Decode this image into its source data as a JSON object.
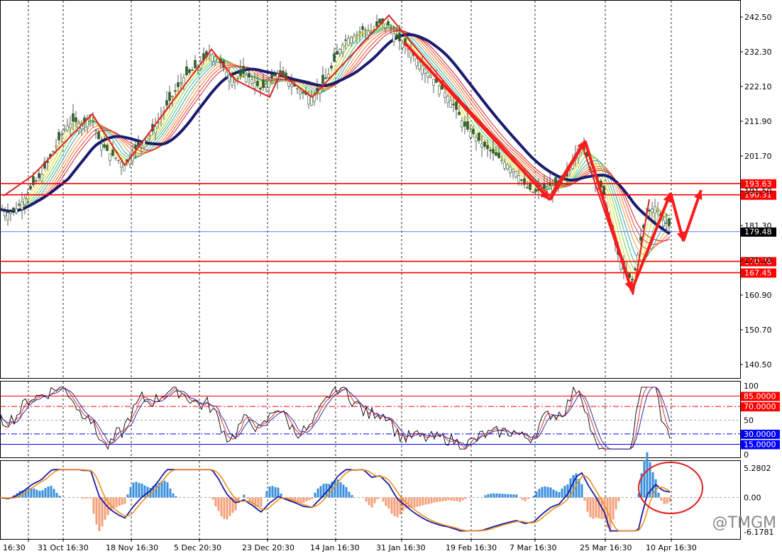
{
  "chart_data": [
    {
      "type": "candlestick",
      "title": "",
      "ylim": [
        135.0,
        248.0
      ],
      "price_ticks": [
        "242.50",
        "232.30",
        "222.10",
        "211.90",
        "201.70",
        "191.50",
        "181.30",
        "171.10",
        "160.90",
        "150.70",
        "140.50"
      ],
      "time_labels": [
        "16:30",
        "31 Oct 16:30",
        "18 Nov 16:30",
        "5 Dec 20:30",
        "23 Dec 20:30",
        "14 Jan 16:30",
        "31 Jan 16:30",
        "19 Feb 16:30",
        "7 Mar 16:30",
        "25 Mar 16:30",
        "10 Apr 16:30"
      ],
      "grid": "vertical dashed",
      "close_path": [
        [
          0,
          186
        ],
        [
          12,
          185
        ],
        [
          22,
          186
        ],
        [
          34,
          189
        ],
        [
          46,
          193
        ],
        [
          58,
          196
        ],
        [
          70,
          201
        ],
        [
          82,
          206
        ],
        [
          92,
          210
        ],
        [
          104,
          212
        ],
        [
          116,
          211
        ],
        [
          128,
          214
        ],
        [
          140,
          206
        ],
        [
          152,
          203
        ],
        [
          164,
          201
        ],
        [
          176,
          199
        ],
        [
          188,
          203
        ],
        [
          200,
          206
        ],
        [
          212,
          208
        ],
        [
          224,
          212
        ],
        [
          236,
          217
        ],
        [
          248,
          221
        ],
        [
          260,
          225
        ],
        [
          272,
          227
        ],
        [
          284,
          229
        ],
        [
          296,
          232
        ],
        [
          308,
          230
        ],
        [
          320,
          226
        ],
        [
          332,
          224
        ],
        [
          344,
          226
        ],
        [
          356,
          224
        ],
        [
          368,
          221
        ],
        [
          380,
          224
        ],
        [
          392,
          226
        ],
        [
          404,
          224
        ],
        [
          416,
          222
        ],
        [
          428,
          220
        ],
        [
          440,
          219
        ],
        [
          452,
          222
        ],
        [
          464,
          226
        ],
        [
          476,
          232
        ],
        [
          488,
          236
        ],
        [
          500,
          237
        ],
        [
          512,
          239
        ],
        [
          524,
          238
        ],
        [
          536,
          241
        ],
        [
          548,
          240
        ],
        [
          560,
          236
        ],
        [
          572,
          234
        ],
        [
          584,
          231
        ],
        [
          596,
          228
        ],
        [
          608,
          225
        ],
        [
          620,
          222
        ],
        [
          632,
          219
        ],
        [
          644,
          215
        ],
        [
          656,
          210
        ],
        [
          668,
          208
        ],
        [
          680,
          205
        ],
        [
          692,
          203
        ],
        [
          704,
          201
        ],
        [
          716,
          199
        ],
        [
          728,
          197
        ],
        [
          740,
          193
        ],
        [
          752,
          191
        ],
        [
          764,
          192
        ],
        [
          776,
          193
        ],
        [
          788,
          193
        ],
        [
          800,
          196
        ],
        [
          812,
          203
        ],
        [
          820,
          205
        ],
        [
          830,
          200
        ],
        [
          840,
          196
        ],
        [
          852,
          190
        ],
        [
          862,
          180
        ],
        [
          872,
          172
        ],
        [
          882,
          167
        ],
        [
          892,
          165
        ],
        [
          902,
          176
        ],
        [
          912,
          185
        ],
        [
          924,
          187
        ],
        [
          934,
          183
        ],
        [
          944,
          181
        ]
      ],
      "lines": [
        {
          "label": "193.63",
          "value": 193.63,
          "color": "#ff0000"
        },
        {
          "label": "190.31",
          "value": 190.31,
          "color": "#ff0000"
        },
        {
          "label": "179.48",
          "value": 179.48,
          "color": "#2255ff"
        },
        {
          "label": "170.78",
          "value": 170.78,
          "color": "#ff0000"
        },
        {
          "label": "167.45",
          "value": 167.45,
          "color": "#ff0000"
        }
      ],
      "current_price": "179.48"
    },
    {
      "type": "line",
      "name": "stochastic",
      "ylim": [
        0,
        105
      ],
      "y_ticks": [
        "100",
        "50",
        "0"
      ],
      "levels": [
        {
          "label": "85.0000",
          "value": 85,
          "color": "#ff0000"
        },
        {
          "label": "70.0000",
          "value": 70,
          "color": "#ff0000"
        },
        {
          "label": "30.0000",
          "value": 30,
          "color": "#0000ff"
        },
        {
          "label": "15.0000",
          "value": 15,
          "color": "#0000ff"
        }
      ]
    },
    {
      "type": "bar",
      "name": "oscillator",
      "ylim": [
        -6.1781,
        5.2802
      ],
      "y_ticks": [
        "5.2802",
        "0.00",
        "-6.1781"
      ]
    }
  ],
  "watermark": "@TMGM"
}
